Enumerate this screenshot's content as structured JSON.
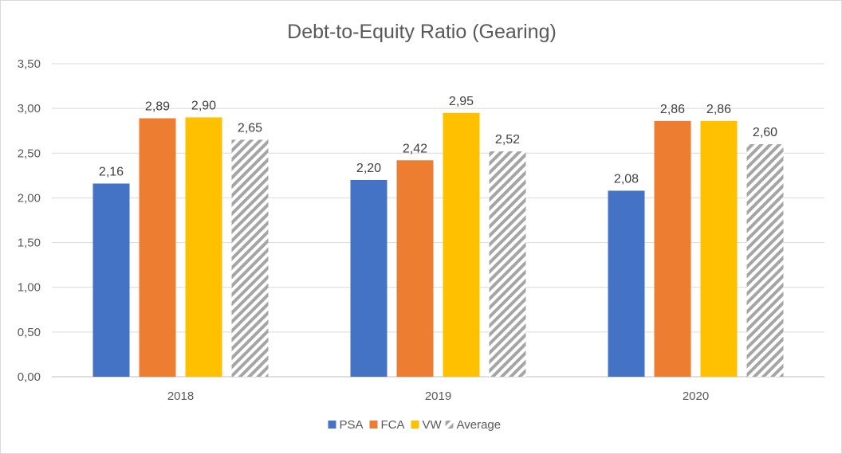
{
  "chart_data": {
    "type": "bar",
    "title": "Debt-to-Equity Ratio (Gearing)",
    "xlabel": "",
    "ylabel": "",
    "categories": [
      "2018",
      "2019",
      "2020"
    ],
    "series": [
      {
        "name": "PSA",
        "color": "#4472C4",
        "pattern": "solid",
        "values": [
          2.16,
          2.2,
          2.08
        ],
        "labels": [
          "2,16",
          "2,20",
          "2,08"
        ]
      },
      {
        "name": "FCA",
        "color": "#ED7D31",
        "pattern": "solid",
        "values": [
          2.89,
          2.42,
          2.86
        ],
        "labels": [
          "2,89",
          "2,42",
          "2,86"
        ]
      },
      {
        "name": "VW",
        "color": "#FFC000",
        "pattern": "solid",
        "values": [
          2.9,
          2.95,
          2.86
        ],
        "labels": [
          "2,90",
          "2,95",
          "2,86"
        ]
      },
      {
        "name": "Average",
        "color": "#A5A5A5",
        "pattern": "diagonal-hatch",
        "values": [
          2.65,
          2.52,
          2.6
        ],
        "labels": [
          "2,65",
          "2,52",
          "2,60"
        ]
      }
    ],
    "ylim": [
      0,
      3.5
    ],
    "yticks": [
      0,
      0.5,
      1.0,
      1.5,
      2.0,
      2.5,
      3.0,
      3.5
    ],
    "ytick_labels": [
      "0,00",
      "0,50",
      "1,00",
      "1,50",
      "2,00",
      "2,50",
      "3,00",
      "3,50"
    ],
    "grid": true,
    "legend_position": "bottom",
    "gridline_color": "#d9d9d9"
  }
}
